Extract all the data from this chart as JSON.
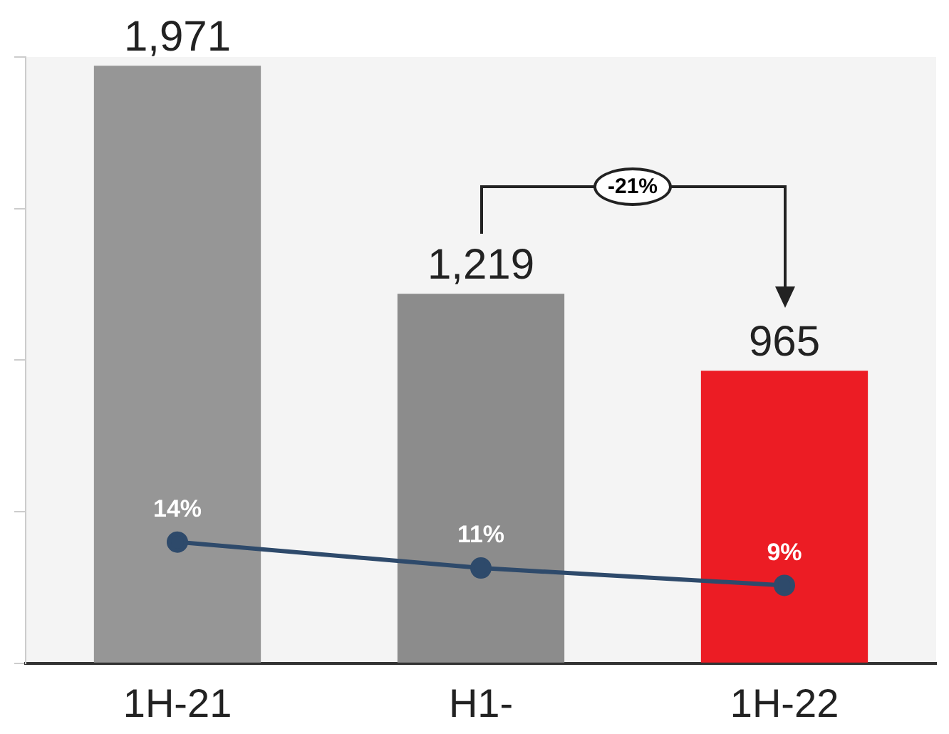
{
  "chart_data": {
    "type": "bar",
    "categories": [
      "1H-21",
      "H1-",
      "1H-22"
    ],
    "series": [
      {
        "colors": [
          "#969696",
          "#8c8c8c",
          "#ec1c24"
        ],
        "values": [
          1971,
          1219,
          965
        ],
        "value_labels": [
          "1,971",
          "1,219",
          "965"
        ]
      },
      {
        "type": "line",
        "axis": "y2",
        "color": "#2e4a6b",
        "values": [
          14,
          11,
          9
        ],
        "value_labels": [
          "14%",
          "11%",
          "9%"
        ]
      }
    ],
    "ylim": [
      0,
      2000
    ],
    "yticks": [
      {
        "value": 0,
        "label": null
      },
      {
        "value": 500,
        "label": null
      },
      {
        "value": 1000,
        "label": null
      },
      {
        "value": 1500,
        "label": null
      },
      {
        "value": 2000,
        "label": null
      }
    ],
    "y2lim": [
      0,
      70
    ],
    "data_labels": true,
    "tick_labels": "x",
    "grid": false,
    "legend": false,
    "marker": "circle",
    "annotations": [
      "-21%"
    ]
  }
}
